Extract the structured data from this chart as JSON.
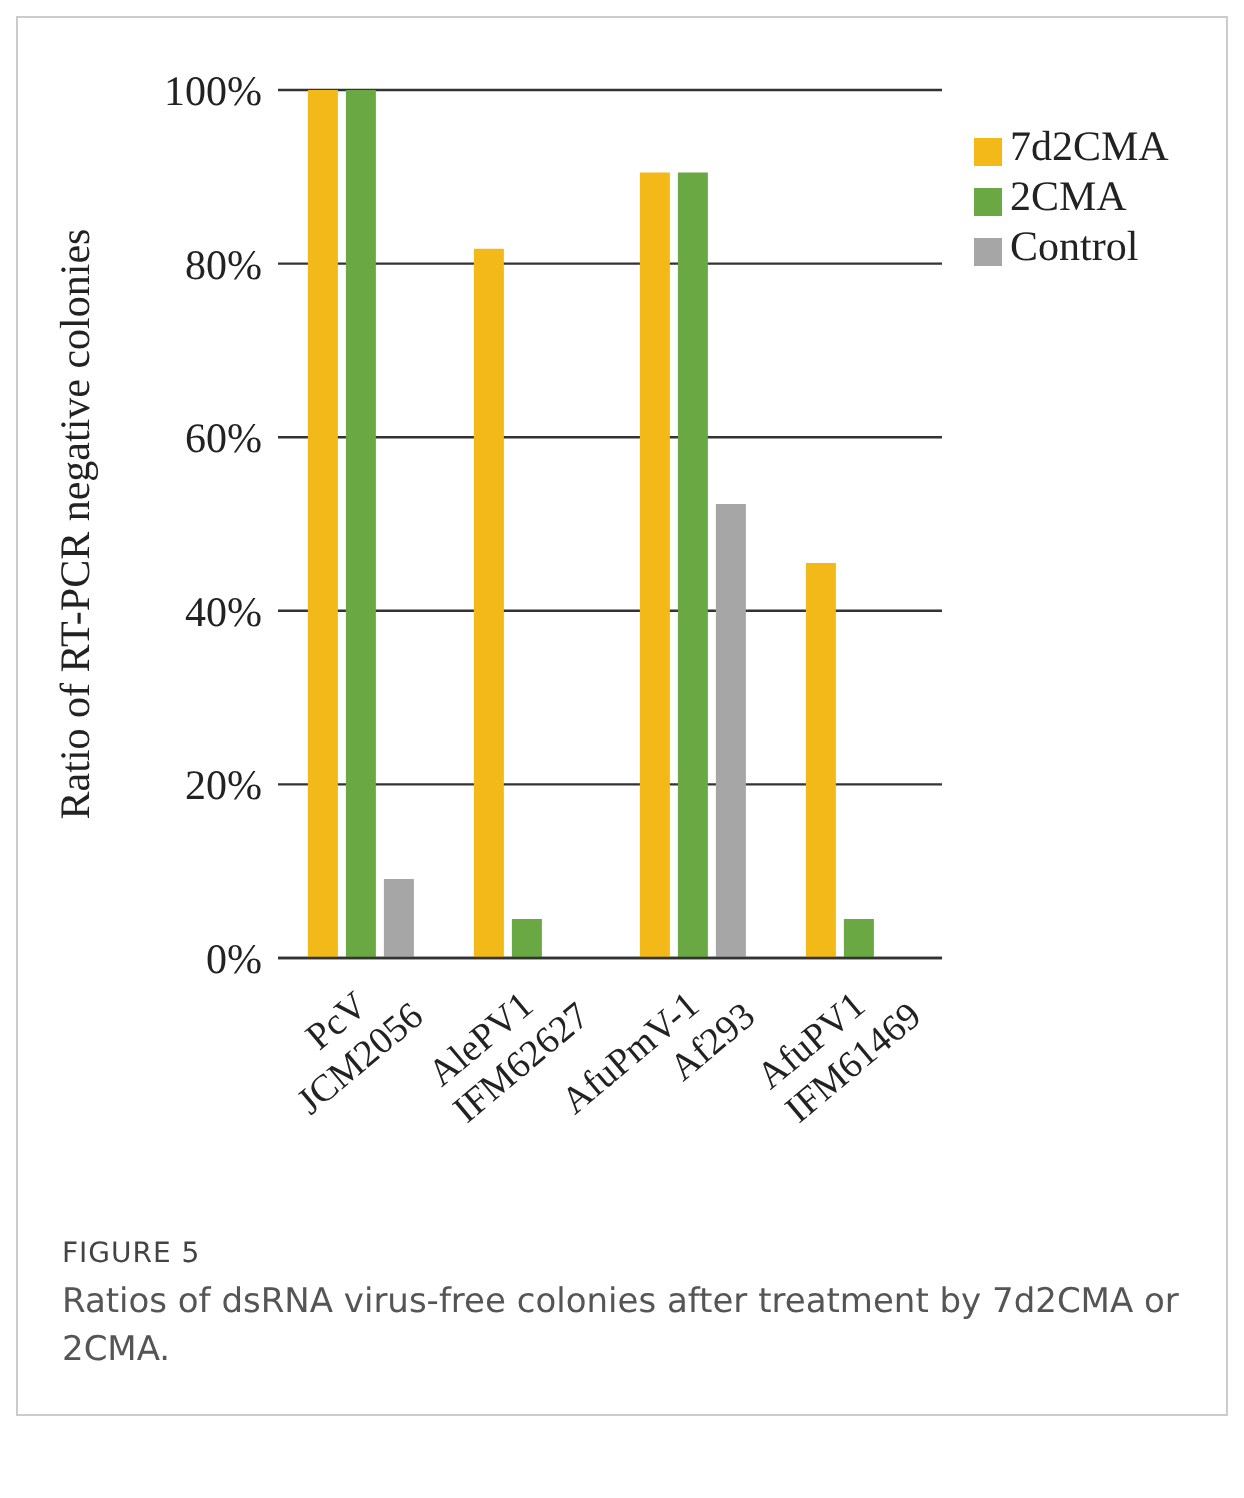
{
  "chart_data": {
    "type": "bar",
    "title": "FIGURE 5",
    "subtitle": "Ratios of dsRNA virus-free colonies after treatment by 7d2CMA or 2CMA.",
    "ylabel": "Ratio of RT-PCR negative colonies",
    "categories": [
      "PcV\nJCM2056",
      "AlePV1\nIFM62627",
      "AfuPmV-1\nAf293",
      "AfuPV1\nIFM61469"
    ],
    "series": [
      {
        "name": "7d2CMA",
        "color": "#f2b918",
        "values": [
          100,
          81.7,
          90.5,
          45.5
        ]
      },
      {
        "name": "2CMA",
        "color": "#6aa843",
        "values": [
          100,
          4.5,
          90.5,
          4.5
        ]
      },
      {
        "name": "Control",
        "color": "#a6a6a6",
        "values": [
          9.1,
          0,
          52.3,
          0
        ]
      }
    ],
    "ylim": [
      0,
      100
    ],
    "yticks": [
      {
        "value": 0,
        "label": "0%"
      },
      {
        "value": 20,
        "label": "20%"
      },
      {
        "value": 40,
        "label": "40%"
      },
      {
        "value": 60,
        "label": "60%"
      },
      {
        "value": 80,
        "label": "80%"
      },
      {
        "value": 100,
        "label": "100%"
      }
    ],
    "grid": "y",
    "legend": "top right"
  }
}
